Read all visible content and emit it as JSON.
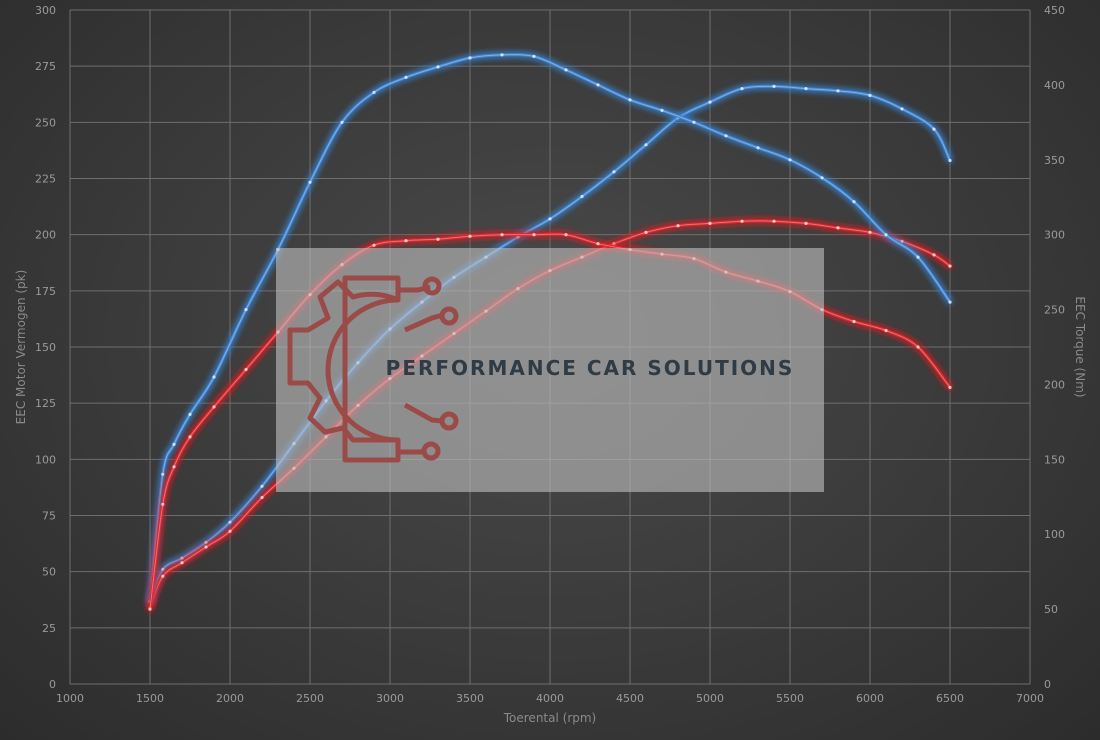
{
  "chart_data": {
    "type": "line",
    "xlabel": "Toerental (rpm)",
    "ylabel": "EEC Motor Vermogen (pk)",
    "y2label": "EEC Torque (Nm)",
    "xlim": [
      1000,
      7000
    ],
    "ylim": [
      0,
      300
    ],
    "y2lim": [
      0,
      450
    ],
    "x_ticks": [
      1000,
      1500,
      2000,
      2500,
      3000,
      3500,
      4000,
      4500,
      5000,
      5500,
      6000,
      6500,
      7000
    ],
    "y_ticks": [
      0,
      25,
      50,
      75,
      100,
      125,
      150,
      175,
      200,
      225,
      250,
      275,
      300
    ],
    "y2_ticks": [
      0,
      50,
      100,
      150,
      200,
      250,
      300,
      350,
      400,
      450
    ],
    "grid": true,
    "series": [
      {
        "color": "#3d86d6",
        "axis": "left",
        "x": [
          1500,
          1580,
          1700,
          1850,
          2000,
          2200,
          2400,
          2600,
          2800,
          3000,
          3200,
          3400,
          3600,
          3800,
          4000,
          4200,
          4400,
          4600,
          4800,
          5000,
          5200,
          5400,
          5600,
          5800,
          6000,
          6200,
          6400,
          6500
        ],
        "y": [
          37,
          51,
          56,
          63,
          72,
          88,
          107,
          126,
          143,
          158,
          170,
          181,
          190,
          199,
          207,
          217,
          228,
          240,
          252,
          259,
          265,
          266,
          265,
          264,
          262,
          256,
          247,
          233
        ]
      },
      {
        "color": "#e0262a",
        "axis": "left",
        "x": [
          1500,
          1580,
          1700,
          1850,
          2000,
          2200,
          2400,
          2600,
          2800,
          3000,
          3200,
          3400,
          3600,
          3800,
          4000,
          4200,
          4400,
          4600,
          4800,
          5000,
          5200,
          5400,
          5600,
          5800,
          6000,
          6200,
          6400,
          6500
        ],
        "y": [
          34,
          48,
          54,
          61,
          68,
          83,
          96,
          110,
          124,
          136,
          146,
          156,
          166,
          176,
          184,
          190,
          196,
          201,
          204,
          205,
          206,
          206,
          205,
          203,
          201,
          197,
          191,
          186
        ]
      },
      {
        "color": "#3d86d6",
        "axis": "right",
        "x": [
          1500,
          1580,
          1650,
          1750,
          1900,
          2100,
          2300,
          2500,
          2700,
          2900,
          3100,
          3300,
          3500,
          3700,
          3900,
          4100,
          4300,
          4500,
          4700,
          4900,
          5100,
          5300,
          5500,
          5700,
          5900,
          6100,
          6300,
          6500
        ],
        "y": [
          55,
          140,
          160,
          180,
          205,
          250,
          290,
          335,
          375,
          395,
          405,
          412,
          418,
          420,
          419,
          410,
          400,
          390,
          383,
          375,
          366,
          358,
          350,
          338,
          322,
          300,
          285,
          255
        ]
      },
      {
        "color": "#e0262a",
        "axis": "right",
        "x": [
          1500,
          1580,
          1650,
          1750,
          1900,
          2100,
          2300,
          2500,
          2700,
          2900,
          3100,
          3300,
          3500,
          3700,
          3900,
          4100,
          4300,
          4500,
          4700,
          4900,
          5100,
          5300,
          5500,
          5700,
          5900,
          6100,
          6300,
          6500
        ],
        "y": [
          50,
          120,
          145,
          165,
          185,
          210,
          235,
          260,
          280,
          293,
          296,
          297,
          299,
          300,
          300,
          300,
          294,
          290,
          287,
          284,
          275,
          269,
          262,
          250,
          242,
          236,
          225,
          198
        ]
      }
    ],
    "watermark": "PERFORMANCE CAR SOLUTIONS"
  }
}
